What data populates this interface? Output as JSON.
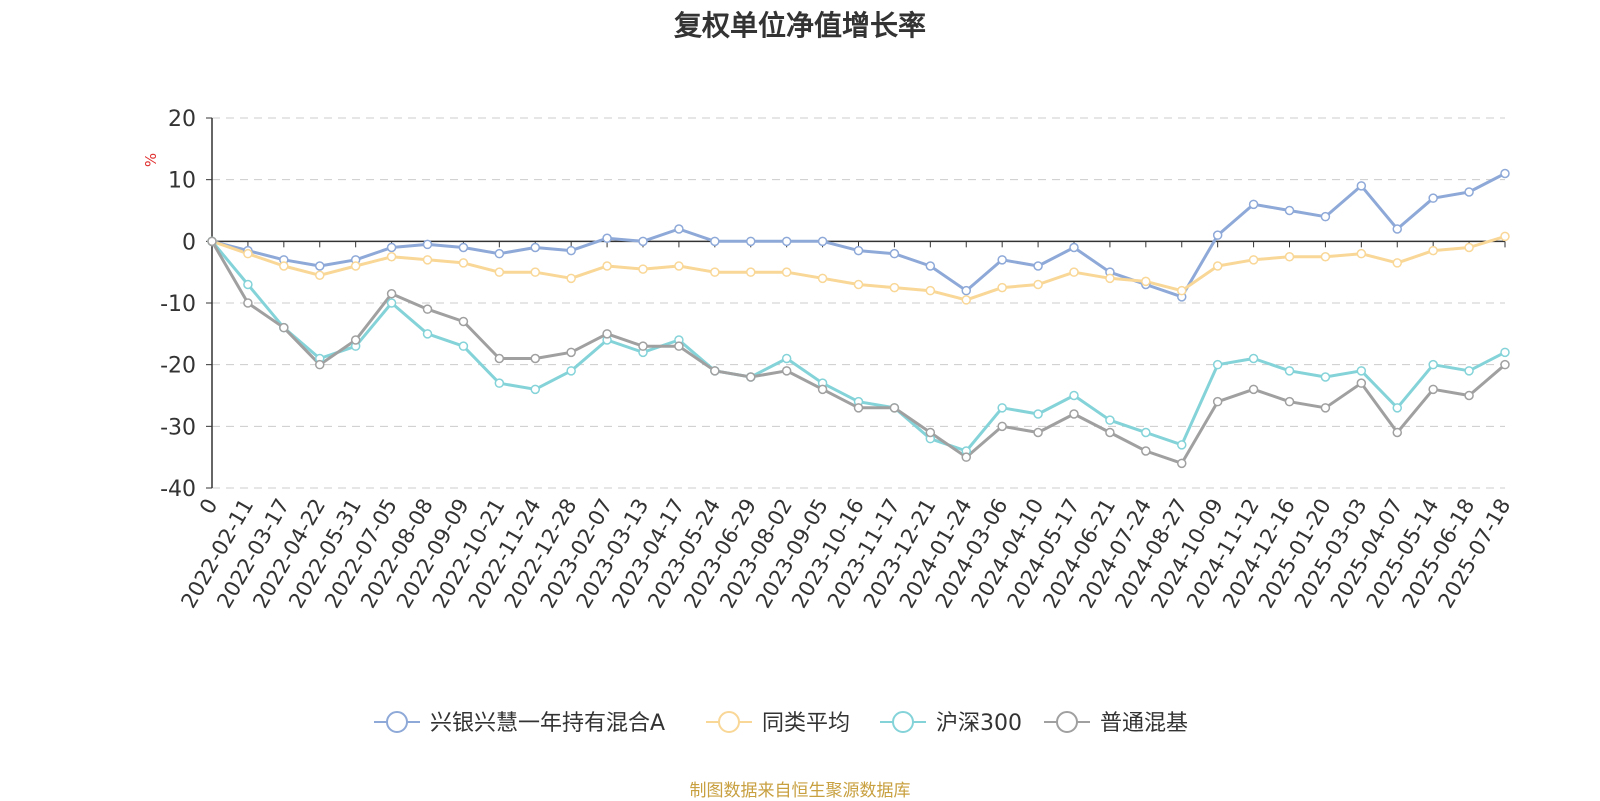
{
  "chart_data": {
    "type": "line",
    "title": "复权单位净值增长率",
    "ylabel": "%",
    "ylim": [
      -40,
      20
    ],
    "yticks": [
      20,
      10,
      0,
      -10,
      -20,
      -30,
      -40
    ],
    "grid": true,
    "legend_position": "bottom",
    "x": [
      "0",
      "2022-02-11",
      "2022-03-17",
      "2022-04-22",
      "2022-05-31",
      "2022-07-05",
      "2022-08-08",
      "2022-09-09",
      "2022-10-21",
      "2022-11-24",
      "2022-12-28",
      "2023-02-07",
      "2023-03-13",
      "2023-04-17",
      "2023-05-24",
      "2023-06-29",
      "2023-08-02",
      "2023-09-05",
      "2023-10-16",
      "2023-11-17",
      "2023-12-21",
      "2024-01-24",
      "2024-03-06",
      "2024-04-10",
      "2024-05-17",
      "2024-06-21",
      "2024-07-24",
      "2024-08-27",
      "2024-10-09",
      "2024-11-12",
      "2024-12-16",
      "2025-01-20",
      "2025-03-03",
      "2025-04-07",
      "2025-05-14",
      "2025-06-18",
      "2025-07-18"
    ],
    "series": [
      {
        "name": "兴银兴慧一年持有混合A",
        "color": "#8ea9d8",
        "values": [
          0,
          -1.5,
          -3,
          -4,
          -3,
          -1,
          -0.5,
          -1,
          -2,
          -1,
          -1.5,
          0.5,
          0,
          2,
          0,
          0,
          0,
          0,
          -1.5,
          -2,
          -4,
          -8,
          -3,
          -4,
          -1,
          -5,
          -7,
          -9,
          1,
          6,
          5,
          4,
          9,
          2,
          7,
          8,
          11
        ]
      },
      {
        "name": "同类平均",
        "color": "#f9d797",
        "values": [
          0,
          -2,
          -4,
          -5.5,
          -4,
          -2.5,
          -3,
          -3.5,
          -5,
          -5,
          -6,
          -4,
          -4.5,
          -4,
          -5,
          -5,
          -5,
          -6,
          -7,
          -7.5,
          -8,
          -9.5,
          -7.5,
          -7,
          -5,
          -6,
          -6.5,
          -8,
          -4,
          -3,
          -2.5,
          -2.5,
          -2,
          -3.5,
          -1.5,
          -1,
          0.8
        ]
      },
      {
        "name": "沪深300",
        "color": "#84d3d9",
        "values": [
          0,
          -7,
          -14,
          -19,
          -17,
          -10,
          -15,
          -17,
          -23,
          -24,
          -21,
          -16,
          -18,
          -16,
          -21,
          -22,
          -19,
          -23,
          -26,
          -27,
          -32,
          -34,
          -27,
          -28,
          -25,
          -29,
          -31,
          -33,
          -20,
          -19,
          -21,
          -22,
          -21,
          -27,
          -20,
          -21,
          -18
        ]
      },
      {
        "name": "普通混基",
        "color": "#a0a0a0",
        "values": [
          0,
          -10,
          -14,
          -20,
          -16,
          -8.5,
          -11,
          -13,
          -19,
          -19,
          -18,
          -15,
          -17,
          -17,
          -21,
          -22,
          -21,
          -24,
          -27,
          -27,
          -31,
          -35,
          -30,
          -31,
          -28,
          -31,
          -34,
          -36,
          -26,
          -24,
          -26,
          -27,
          -23,
          -31,
          -24,
          -25,
          -20
        ]
      }
    ]
  },
  "footer": {
    "source": "制图数据来自恒生聚源数据库"
  }
}
